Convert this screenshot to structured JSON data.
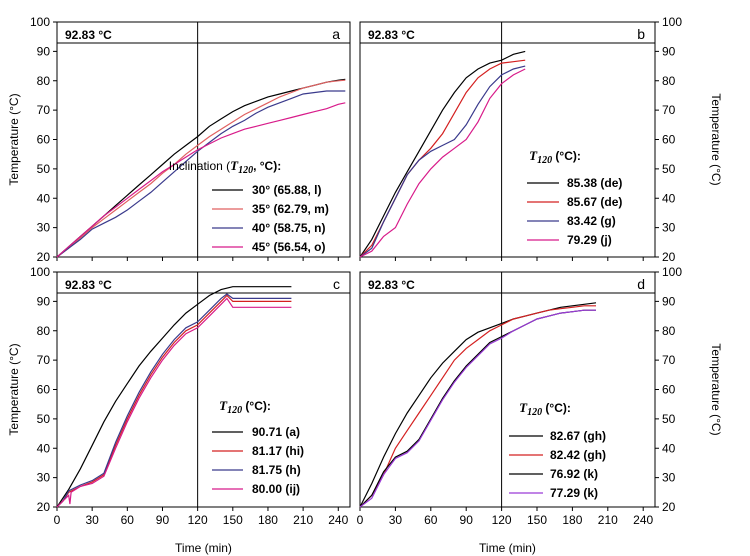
{
  "chart_data": [
    {
      "id": "a",
      "type": "line",
      "panel_label": "a",
      "reference_label": "92.83 °C",
      "reference_value": 92.83,
      "reference_time": 120,
      "xlim": [
        0,
        250
      ],
      "ylim": [
        20,
        100
      ],
      "xticks": [
        0,
        30,
        60,
        90,
        120,
        150,
        180,
        210,
        240
      ],
      "yticks": [
        20,
        30,
        40,
        50,
        60,
        70,
        80,
        90,
        100
      ],
      "xlabel": "",
      "ylabel": "Temperature (°C)",
      "legend_title_pre": "Inclination (",
      "legend_title_t": "T",
      "legend_title_sub": "120",
      "legend_title_post": ", °C):",
      "series": [
        {
          "name": "30° (65.88, l)",
          "color": "#000000",
          "x": [
            0,
            10,
            20,
            30,
            40,
            50,
            60,
            70,
            80,
            90,
            100,
            110,
            120,
            130,
            140,
            150,
            160,
            170,
            180,
            190,
            200,
            210,
            220,
            230,
            240,
            246
          ],
          "y": [
            20,
            23.5,
            27,
            30.5,
            34,
            37.5,
            41,
            44.5,
            48,
            51.5,
            55,
            58,
            61,
            64.5,
            67,
            69.5,
            71.5,
            73,
            74.5,
            75.5,
            76.5,
            77.5,
            78.5,
            79.5,
            80.2,
            80.5
          ]
        },
        {
          "name": "35° (62.79, m)",
          "color": "#e06060",
          "x": [
            0,
            10,
            20,
            30,
            40,
            50,
            60,
            70,
            80,
            90,
            100,
            110,
            120,
            130,
            140,
            150,
            160,
            170,
            180,
            190,
            200,
            210,
            220,
            230,
            240,
            246
          ],
          "y": [
            20,
            23,
            26.5,
            30,
            33,
            36,
            39,
            42,
            45,
            48.5,
            51.5,
            55,
            58,
            61,
            63.5,
            66,
            68.5,
            70.5,
            72.5,
            74.5,
            76,
            77.5,
            78.5,
            79.5,
            80,
            80.2
          ]
        },
        {
          "name": "40° (58.75, n)",
          "color": "#3a3a8c",
          "x": [
            0,
            10,
            20,
            30,
            40,
            50,
            60,
            70,
            80,
            90,
            100,
            110,
            120,
            130,
            140,
            150,
            160,
            170,
            180,
            190,
            200,
            210,
            220,
            230,
            240,
            246
          ],
          "y": [
            20,
            23,
            26,
            29.5,
            31.5,
            33.5,
            36,
            39,
            42,
            45.5,
            49,
            52.5,
            56,
            59,
            62,
            64.5,
            66.5,
            69,
            71,
            72.5,
            74,
            75.5,
            76,
            76.5,
            76.5,
            76.5
          ]
        },
        {
          "name": "45° (56.54, o)",
          "color": "#d81b8a",
          "x": [
            0,
            10,
            20,
            30,
            40,
            50,
            60,
            70,
            80,
            90,
            100,
            110,
            120,
            130,
            140,
            150,
            160,
            170,
            180,
            190,
            200,
            210,
            220,
            230,
            240,
            246
          ],
          "y": [
            20,
            23.5,
            27,
            30.5,
            34,
            37,
            40,
            43,
            46,
            49,
            51.5,
            54,
            56.5,
            58.5,
            60.5,
            62,
            63.5,
            64.5,
            65.5,
            66.5,
            67.5,
            68.5,
            69.5,
            70.5,
            72,
            72.5
          ]
        }
      ]
    },
    {
      "id": "b",
      "type": "line",
      "panel_label": "b",
      "reference_label": "92.83 °C",
      "reference_value": 92.83,
      "reference_time": 120,
      "xlim": [
        0,
        250
      ],
      "ylim": [
        20,
        100
      ],
      "xticks": [
        0,
        30,
        60,
        90,
        120,
        150,
        180,
        210,
        240
      ],
      "yticks": [
        20,
        30,
        40,
        50,
        60,
        70,
        80,
        90,
        100
      ],
      "xlabel": "",
      "ylabel": "Temperature (°C)",
      "legend_title_pre": "",
      "legend_title_t": "T",
      "legend_title_sub": "120",
      "legend_title_post": " (°C):",
      "series": [
        {
          "name": "85.38 (de)",
          "color": "#000000",
          "x": [
            0,
            10,
            20,
            30,
            40,
            50,
            60,
            70,
            80,
            90,
            100,
            110,
            120,
            130,
            140
          ],
          "y": [
            20,
            26,
            34,
            42,
            49,
            56,
            63,
            70,
            76,
            81,
            84,
            86,
            87,
            89,
            90
          ]
        },
        {
          "name": "85.67 (de)",
          "color": "#d42020",
          "x": [
            0,
            10,
            20,
            30,
            40,
            50,
            60,
            70,
            80,
            90,
            100,
            110,
            120,
            130,
            140
          ],
          "y": [
            20,
            24,
            32,
            40,
            48,
            53,
            57,
            62,
            69,
            76,
            81,
            84,
            86,
            86.5,
            87
          ]
        },
        {
          "name": "83.42 (g)",
          "color": "#3a3a8c",
          "x": [
            0,
            10,
            20,
            30,
            40,
            50,
            60,
            70,
            80,
            90,
            100,
            110,
            120,
            130,
            140
          ],
          "y": [
            20,
            23,
            32,
            40,
            48,
            53,
            56,
            58,
            60,
            65,
            72,
            78,
            82,
            84,
            85
          ]
        },
        {
          "name": "79.29 (j)",
          "color": "#d81b8a",
          "x": [
            0,
            10,
            20,
            30,
            40,
            50,
            60,
            70,
            80,
            90,
            100,
            110,
            120,
            130,
            140
          ],
          "y": [
            20,
            22,
            27,
            30,
            38,
            45,
            50,
            54,
            57,
            60,
            66,
            74,
            79,
            82,
            84
          ]
        }
      ]
    },
    {
      "id": "c",
      "type": "line",
      "panel_label": "c",
      "reference_label": "92.83 °C",
      "reference_value": 92.83,
      "reference_time": 120,
      "xlim": [
        0,
        250
      ],
      "ylim": [
        20,
        100
      ],
      "xticks": [
        0,
        30,
        60,
        90,
        120,
        150,
        180,
        210,
        240
      ],
      "yticks": [
        20,
        30,
        40,
        50,
        60,
        70,
        80,
        90,
        100
      ],
      "xlabel": "Time (min)",
      "ylabel": "Temperature (°C)",
      "legend_title_pre": "",
      "legend_title_t": "T",
      "legend_title_sub": "120",
      "legend_title_post": " (°C):",
      "series": [
        {
          "name": "90.71 (a)",
          "color": "#000000",
          "x": [
            0,
            10,
            20,
            30,
            40,
            50,
            60,
            70,
            80,
            90,
            100,
            110,
            120,
            130,
            140,
            150,
            160,
            170,
            180,
            190,
            200
          ],
          "y": [
            20,
            26,
            33,
            41,
            49,
            56,
            62,
            68,
            73,
            77.5,
            82,
            86,
            89,
            92,
            94,
            95,
            95,
            95,
            95,
            95,
            95
          ]
        },
        {
          "name": "81.17 (hi)",
          "color": "#d42020",
          "x": [
            0,
            5,
            10,
            20,
            30,
            40,
            50,
            60,
            70,
            80,
            90,
            100,
            110,
            120,
            130,
            140,
            145,
            150,
            160,
            170,
            180,
            190,
            200
          ],
          "y": [
            20,
            22,
            25,
            27,
            28.5,
            31,
            41,
            50,
            58,
            65,
            71,
            76,
            80,
            82,
            86,
            90,
            92,
            90,
            90,
            90,
            90,
            90,
            90
          ]
        },
        {
          "name": "81.75 (h)",
          "color": "#3a3a8c",
          "x": [
            0,
            5,
            10,
            20,
            30,
            40,
            50,
            60,
            70,
            80,
            90,
            100,
            110,
            120,
            130,
            140,
            145,
            150,
            160,
            170,
            180,
            190,
            200
          ],
          "y": [
            20,
            22,
            25.5,
            27.5,
            29,
            31.5,
            42,
            51,
            59,
            66,
            72,
            77,
            81,
            83,
            87,
            91,
            92.5,
            91,
            91,
            91,
            91,
            91,
            91
          ]
        },
        {
          "name": "80.00 (ij)",
          "color": "#d81b8a",
          "x": [
            0,
            5,
            10,
            11,
            12,
            20,
            30,
            40,
            50,
            60,
            70,
            80,
            90,
            100,
            110,
            120,
            130,
            140,
            145,
            150,
            160,
            170,
            180,
            190,
            200
          ],
          "y": [
            20,
            22,
            24,
            21,
            25,
            27,
            28,
            30.5,
            40,
            49,
            57,
            64,
            70,
            75,
            79,
            81,
            85,
            89,
            91,
            88,
            88,
            88,
            88,
            88,
            88
          ]
        }
      ]
    },
    {
      "id": "d",
      "type": "line",
      "panel_label": "d",
      "reference_label": "92.83 °C",
      "reference_value": 92.83,
      "reference_time": 120,
      "xlim": [
        0,
        250
      ],
      "ylim": [
        20,
        100
      ],
      "xticks": [
        0,
        30,
        60,
        90,
        120,
        150,
        180,
        210,
        240
      ],
      "yticks": [
        20,
        30,
        40,
        50,
        60,
        70,
        80,
        90,
        100
      ],
      "xlabel": "Time (min)",
      "ylabel": "Temperature (°C)",
      "legend_title_pre": "",
      "legend_title_t": "T",
      "legend_title_sub": "120",
      "legend_title_post": " (°C):",
      "series": [
        {
          "name": "82.67 (gh)",
          "color": "#000000",
          "x": [
            0,
            10,
            20,
            30,
            40,
            50,
            60,
            70,
            80,
            90,
            100,
            110,
            120,
            130,
            140,
            150,
            160,
            170,
            180,
            190,
            200
          ],
          "y": [
            20,
            28,
            37,
            45,
            52,
            58,
            64,
            69,
            73,
            77,
            79.5,
            81,
            82.5,
            84,
            85,
            86,
            87,
            88,
            88.5,
            89,
            89.5
          ]
        },
        {
          "name": "82.42 (gh)",
          "color": "#d42020",
          "x": [
            0,
            10,
            20,
            30,
            40,
            50,
            60,
            70,
            80,
            90,
            100,
            110,
            120,
            130,
            140,
            150,
            160,
            170,
            180,
            190,
            200
          ],
          "y": [
            20,
            24,
            31,
            40,
            46,
            52,
            58,
            64,
            70,
            74,
            77,
            80,
            82,
            84,
            85,
            86,
            87,
            87.5,
            88,
            88.5,
            88.5
          ]
        },
        {
          "name": "76.92 (k)",
          "color": "#000000",
          "x": [
            0,
            10,
            20,
            30,
            40,
            50,
            60,
            70,
            80,
            90,
            100,
            110,
            120,
            130,
            140,
            150,
            160,
            170,
            180,
            190,
            200
          ],
          "y": [
            20,
            24,
            32,
            37,
            39,
            43,
            50,
            57,
            63,
            68,
            72,
            76,
            78,
            80,
            82,
            84,
            85,
            86,
            86.5,
            87,
            87
          ]
        },
        {
          "name": "77.29 (k)",
          "color": "#9a3ad8",
          "x": [
            0,
            10,
            20,
            30,
            40,
            50,
            60,
            70,
            80,
            90,
            100,
            110,
            120,
            130,
            140,
            150,
            160,
            170,
            180,
            190,
            200
          ],
          "y": [
            20,
            23,
            31,
            36.5,
            38.5,
            42.5,
            49.5,
            56.5,
            62.5,
            67.5,
            71.5,
            75.5,
            77.5,
            80,
            82,
            84,
            85,
            86,
            86.5,
            87,
            87
          ]
        }
      ]
    }
  ]
}
